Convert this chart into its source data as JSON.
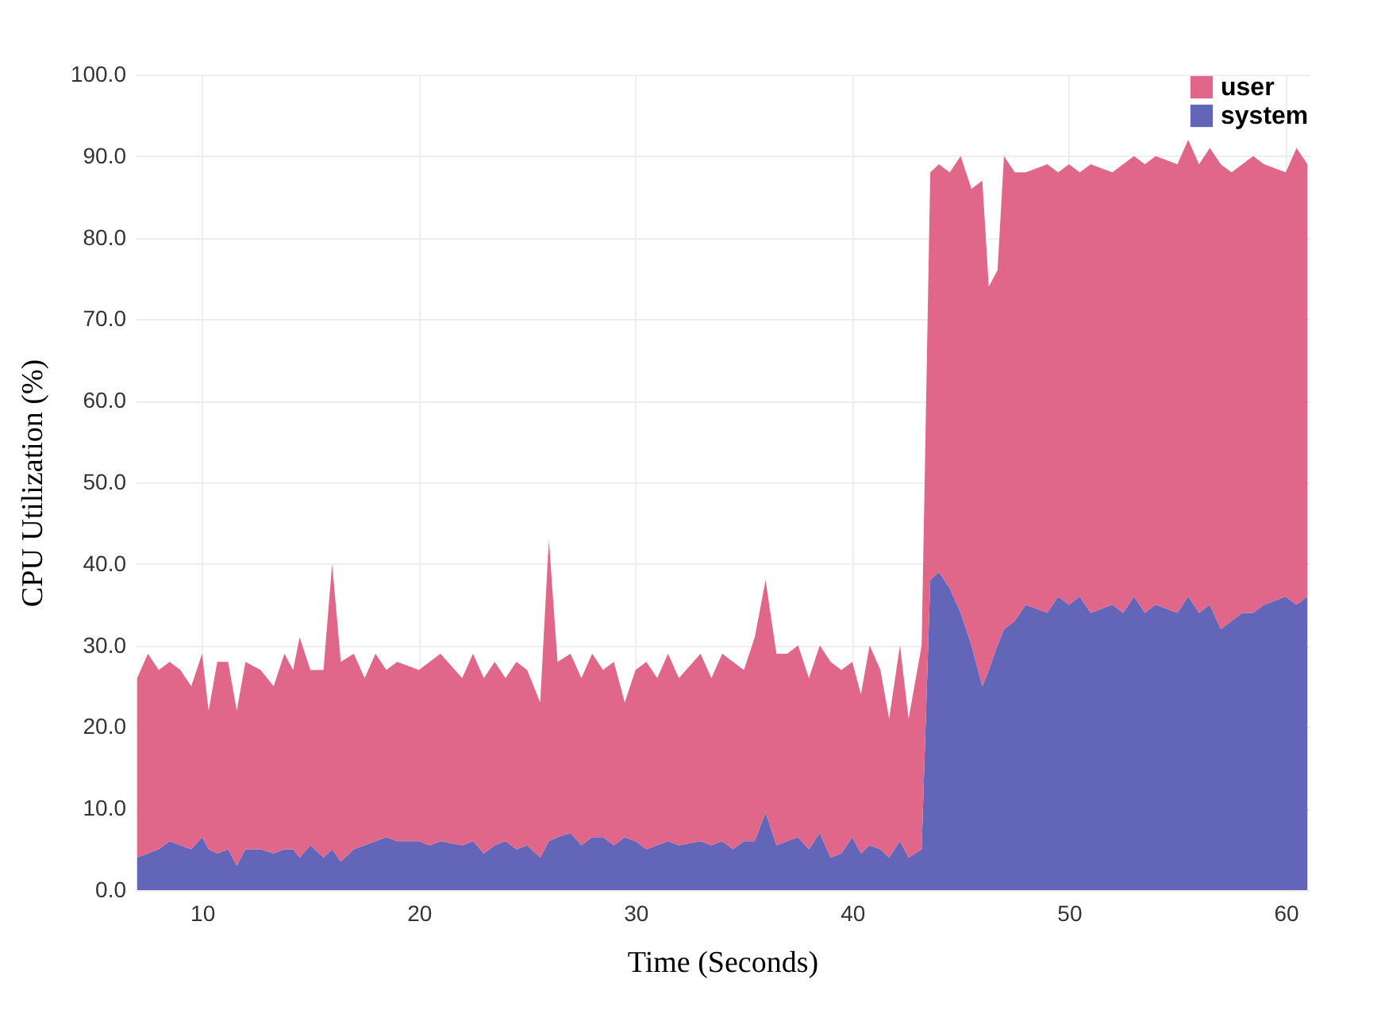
{
  "chart_data": {
    "type": "area",
    "stacked": true,
    "xlabel": "Time (Seconds)",
    "ylabel": "CPU Utilization (%)",
    "x": [
      7,
      7.5,
      8,
      8.5,
      9,
      9.5,
      10,
      10.3,
      10.7,
      11.2,
      11.6,
      12,
      12.7,
      13.3,
      13.8,
      14.2,
      14.5,
      15,
      15.6,
      16,
      16.4,
      17,
      17.5,
      18,
      18.5,
      19,
      20,
      20.5,
      21,
      22,
      22.5,
      23,
      23.5,
      24,
      24.5,
      25,
      25.6,
      26,
      26.4,
      27,
      27.5,
      28,
      28.5,
      29,
      29.5,
      30,
      30.5,
      31,
      31.5,
      32,
      33,
      33.5,
      34,
      34.5,
      35,
      35.5,
      36,
      36.5,
      37,
      37.5,
      38,
      38.5,
      39,
      39.5,
      40,
      40.4,
      40.8,
      41.3,
      41.7,
      42.2,
      42.6,
      43.2,
      43.6,
      44,
      44.5,
      45,
      45.5,
      46,
      46.3,
      46.7,
      47,
      47.5,
      48,
      49,
      49.5,
      50,
      50.5,
      51,
      52,
      52.5,
      53,
      53.5,
      54,
      55,
      55.5,
      56,
      56.5,
      57,
      57.5,
      58,
      58.5,
      59,
      60,
      60.5,
      61
    ],
    "series": [
      {
        "name": "system",
        "color": "#6265b8",
        "values": [
          4,
          4.5,
          5,
          6,
          5.5,
          5,
          6.5,
          5,
          4.5,
          5,
          3,
          5,
          5,
          4.5,
          5,
          5,
          4,
          5.5,
          4,
          5,
          3.5,
          5,
          5.5,
          6,
          6.5,
          6,
          6,
          5.5,
          6,
          5.5,
          6,
          4.5,
          5.5,
          6,
          5,
          5.5,
          4,
          6,
          6.5,
          7,
          5.5,
          6.5,
          6.5,
          5.5,
          6.5,
          6,
          5,
          5.5,
          6,
          5.5,
          6,
          5.5,
          6,
          5,
          6,
          6,
          9.5,
          5.5,
          6,
          6.5,
          5,
          7,
          4,
          4.5,
          6.5,
          4.5,
          5.5,
          5,
          4,
          6,
          4,
          5,
          38,
          39,
          37,
          34,
          30,
          25,
          27,
          30,
          32,
          33,
          35,
          34,
          36,
          35,
          36,
          34,
          35,
          34,
          36,
          34,
          35,
          34,
          36,
          34,
          35,
          32,
          33,
          34,
          34,
          35,
          36,
          35,
          36
        ]
      },
      {
        "name": "user",
        "color": "#e0668a",
        "values": [
          22,
          24.5,
          22,
          22,
          21.5,
          20,
          22.5,
          17,
          23.5,
          23,
          19,
          23,
          22,
          20.5,
          24,
          22,
          27,
          21.5,
          23,
          35,
          24.5,
          24,
          20.5,
          23,
          20.5,
          22,
          21,
          22.5,
          23,
          20.5,
          23,
          21.5,
          22.5,
          20,
          23,
          21.5,
          19,
          37,
          21.5,
          22,
          20.5,
          22.5,
          20.5,
          22.5,
          16.5,
          21,
          23,
          20.5,
          23,
          20.5,
          23,
          20.5,
          23,
          23,
          21,
          25,
          28.5,
          23.5,
          23,
          23.5,
          21,
          23,
          24,
          22.5,
          21.5,
          19.5,
          24.5,
          22,
          17,
          24,
          17,
          25,
          50,
          50,
          51,
          56,
          56,
          62,
          47,
          46,
          58,
          55,
          53,
          55,
          52,
          54,
          52,
          55,
          53,
          55,
          54,
          55,
          55,
          55,
          56,
          55,
          56,
          57,
          55,
          55,
          56,
          54,
          52,
          56,
          53
        ]
      }
    ],
    "xlim": [
      6.9,
      61.1
    ],
    "xticks": [
      10,
      20,
      30,
      40,
      50,
      60
    ],
    "ylim": [
      0,
      100
    ],
    "yticks": [
      {
        "value": 0,
        "label": "0.0"
      },
      {
        "value": 10,
        "label": "10.0"
      },
      {
        "value": 20,
        "label": "20.0"
      },
      {
        "value": 30,
        "label": "30.0"
      },
      {
        "value": 40,
        "label": "40.0"
      },
      {
        "value": 50,
        "label": "50.0"
      },
      {
        "value": 60,
        "label": "60.0"
      },
      {
        "value": 70,
        "label": "70.0"
      },
      {
        "value": 80,
        "label": "80.0"
      },
      {
        "value": 90,
        "label": "90.0"
      },
      {
        "value": 100,
        "label": "100.0"
      }
    ],
    "grid": true,
    "legend": "top right"
  }
}
